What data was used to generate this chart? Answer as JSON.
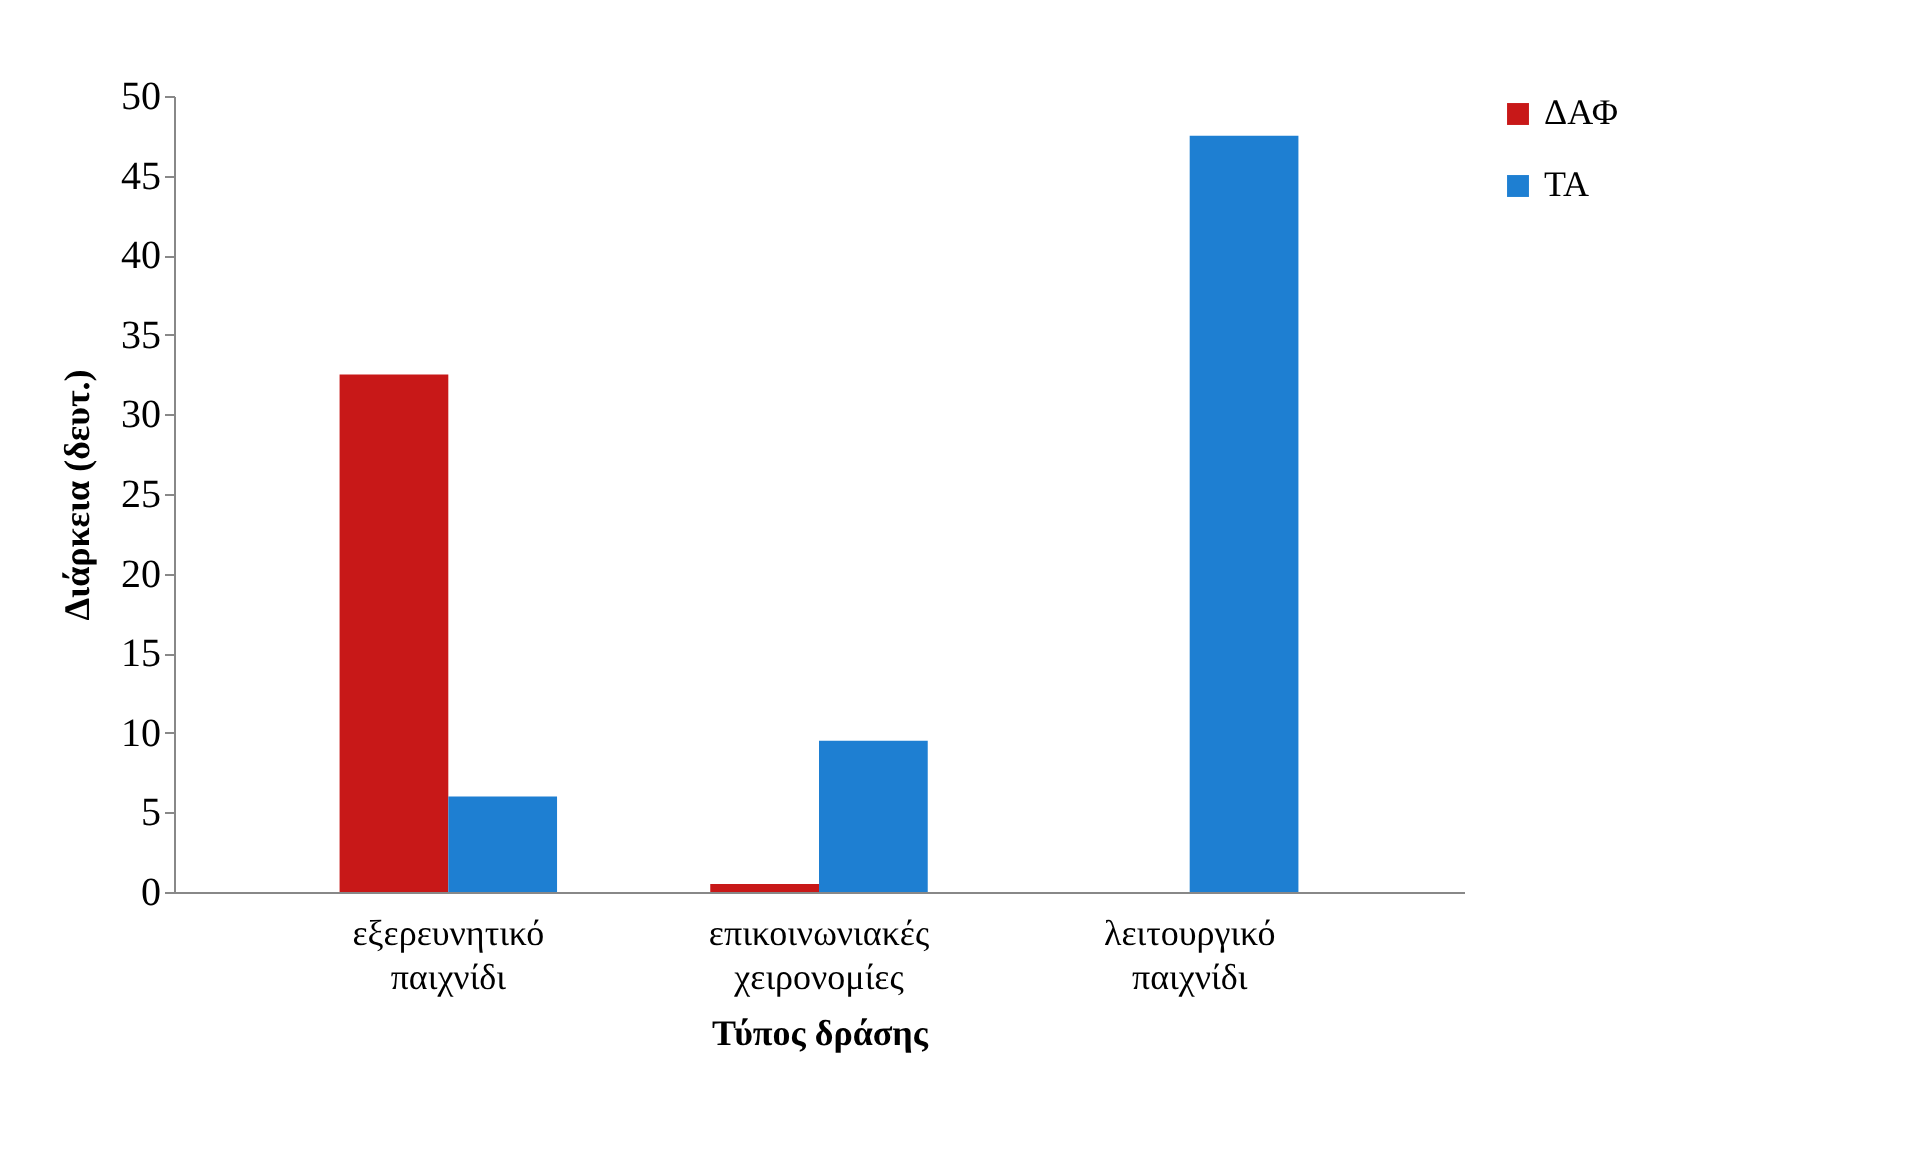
{
  "chart_data": {
    "type": "bar",
    "xlabel": "Τύπος δράσης",
    "ylabel": "Διάρκεια (δευτ.)",
    "categories": [
      "εξερευνητικό παιχνίδι",
      "επικοινωνιακές χειρονομίες",
      "λειτουργικό παιχνίδι"
    ],
    "series": [
      {
        "name": "ΔΑΦ",
        "color": "#c81818",
        "values": [
          32.5,
          0.5,
          null
        ]
      },
      {
        "name": "ΤΑ",
        "color": "#1e7fd2",
        "values": [
          6,
          9.5,
          47.5
        ]
      }
    ],
    "ylim": [
      0,
      50
    ],
    "yticks": [
      0,
      5,
      10,
      15,
      20,
      25,
      30,
      35,
      40,
      45,
      50
    ],
    "grid": false,
    "legend": "right"
  }
}
